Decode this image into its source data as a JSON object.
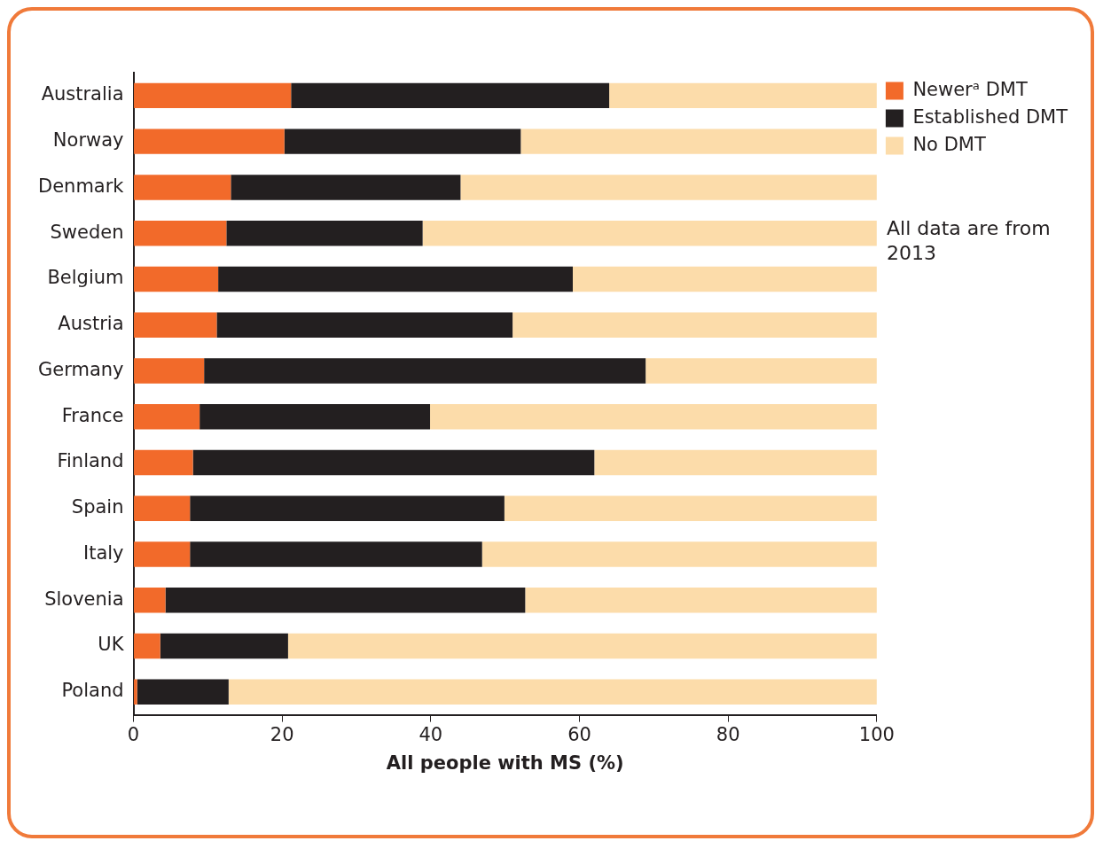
{
  "chart_data": {
    "type": "bar",
    "orientation": "horizontal",
    "stacked": true,
    "xlabel": "All people with MS (%)",
    "categories": [
      "Australia",
      "Norway",
      "Denmark",
      "Sweden",
      "Belgium",
      "Austria",
      "Germany",
      "France",
      "Finland",
      "Spain",
      "Italy",
      "Slovenia",
      "UK",
      "Poland"
    ],
    "series": [
      {
        "name": "Newerᵃ DMT",
        "color": "#f26a2a",
        "values": [
          21.2,
          20.3,
          13.1,
          12.5,
          11.4,
          11.2,
          9.5,
          8.9,
          8.0,
          7.6,
          7.6,
          4.3,
          3.6,
          0.5
        ]
      },
      {
        "name": "Established DMT",
        "color": "#231f20",
        "values": [
          42.8,
          31.8,
          30.9,
          26.4,
          47.7,
          39.8,
          59.4,
          31.0,
          54.0,
          42.3,
          39.3,
          48.4,
          17.2,
          12.3
        ]
      },
      {
        "name": "No DMT",
        "color": "#fcdcaa",
        "values": [
          36.0,
          47.9,
          56.0,
          61.1,
          40.9,
          49.0,
          31.1,
          60.1,
          38.0,
          50.1,
          53.1,
          47.3,
          79.2,
          87.2
        ]
      }
    ],
    "xlim": [
      0,
      100
    ],
    "xticks": [
      0,
      20,
      40,
      60,
      80,
      100
    ],
    "legend": "top right",
    "annotations": [
      "All data are from 2013"
    ]
  }
}
